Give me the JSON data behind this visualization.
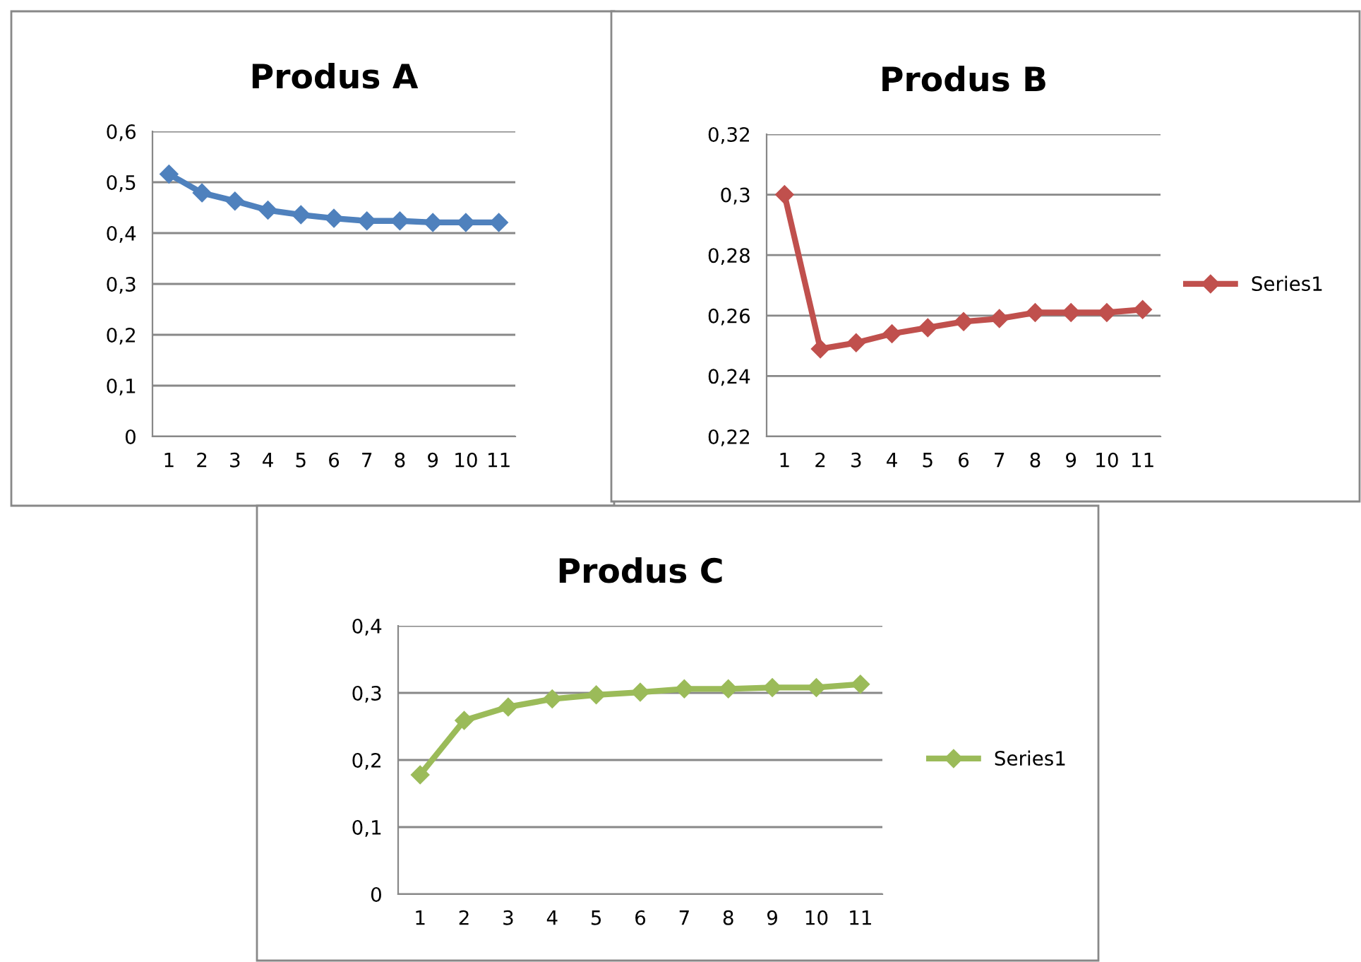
{
  "chart_data": [
    {
      "type": "line",
      "title": "Produs A",
      "categories": [
        "1",
        "2",
        "3",
        "4",
        "5",
        "6",
        "7",
        "8",
        "9",
        "10",
        "11"
      ],
      "series": [
        {
          "color": "#4f81bd",
          "values": [
            0.516,
            0.479,
            0.463,
            0.445,
            0.436,
            0.429,
            0.424,
            0.424,
            0.421,
            0.421,
            0.421
          ]
        }
      ],
      "ylim": [
        0,
        0.6
      ],
      "yticks": [
        0,
        {
          "value": 0.1,
          "label": "0,1"
        },
        {
          "value": 0.2,
          "label": "0,2"
        },
        {
          "value": 0.3,
          "label": "0,3"
        },
        {
          "value": 0.4,
          "label": "0,4"
        },
        {
          "value": 0.5,
          "label": "0,5"
        },
        {
          "value": 0.6,
          "label": "0,6"
        }
      ],
      "grid": "y",
      "marker": "diamond",
      "line_style": "solid"
    },
    {
      "type": "line",
      "title": "Produs B",
      "categories": [
        "1",
        "2",
        "3",
        "4",
        "5",
        "6",
        "7",
        "8",
        "9",
        "10",
        "11"
      ],
      "series": [
        {
          "name": "Series1",
          "color": "#c0504d",
          "values": [
            0.3,
            0.249,
            0.251,
            0.254,
            0.256,
            0.258,
            0.259,
            0.261,
            0.261,
            0.261,
            0.262
          ]
        }
      ],
      "ylim": [
        0.22,
        0.32
      ],
      "yticks": [
        {
          "value": 0.22,
          "label": "0,22"
        },
        {
          "value": 0.24,
          "label": "0,24"
        },
        {
          "value": 0.26,
          "label": "0,26"
        },
        {
          "value": 0.28,
          "label": "0,28"
        },
        {
          "value": 0.3,
          "label": "0,3"
        },
        {
          "value": 0.32,
          "label": "0,32"
        }
      ],
      "grid": "y",
      "legend": "right",
      "marker": "diamond",
      "line_style": "solid"
    },
    {
      "type": "line",
      "title": "Produs C",
      "categories": [
        "1",
        "2",
        "3",
        "4",
        "5",
        "6",
        "7",
        "8",
        "9",
        "10",
        "11"
      ],
      "series": [
        {
          "name": "Series1",
          "color": "#9bbb59",
          "values": [
            0.178,
            0.259,
            0.279,
            0.291,
            0.297,
            0.301,
            0.306,
            0.306,
            0.308,
            0.308,
            0.313
          ]
        }
      ],
      "ylim": [
        0,
        0.4
      ],
      "yticks": [
        0,
        {
          "value": 0.1,
          "label": "0,1"
        },
        {
          "value": 0.2,
          "label": "0,2"
        },
        {
          "value": 0.3,
          "label": "0,3"
        },
        {
          "value": 0.4,
          "label": "0,4"
        }
      ],
      "grid": "y",
      "legend": "right",
      "marker": "diamond",
      "line_style": "solid"
    }
  ]
}
